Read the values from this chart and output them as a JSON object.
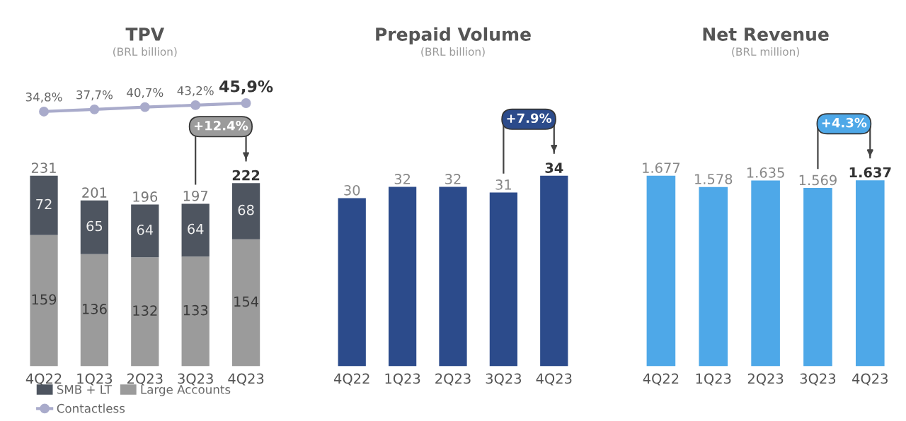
{
  "chart_data": [
    {
      "type": "line",
      "title": "TPV",
      "subtitle": "(BRL billion)",
      "categories": [
        null,
        null,
        null,
        null,
        null
      ],
      "tick_labels": false,
      "legend": "bottom",
      "marker": "circle",
      "series": [
        {
          "name": "Contactless",
          "color": "#a9abcb",
          "values": [
            34.8,
            37.7,
            40.7,
            43.2,
            45.9
          ],
          "value_labels": [
            "34,8%",
            "37,7%",
            "40,7%",
            "43,2%",
            "45,9%"
          ]
        }
      ]
    },
    {
      "type": "bar",
      "categories": [
        "4Q22",
        "1Q23",
        "2Q23",
        "3Q23",
        "4Q23"
      ],
      "stacked": true,
      "tick_labels": "x",
      "legend": "bottom",
      "data_labels": true,
      "series": [
        {
          "name": "Large Accounts",
          "color": "#9b9b9b",
          "values": [
            159,
            136,
            132,
            133,
            154
          ]
        },
        {
          "name": "SMB + LT",
          "color": "#4e5560",
          "values": [
            72,
            65,
            64,
            64,
            68
          ]
        }
      ],
      "totals": [
        "231",
        "201",
        "196",
        "197",
        "222"
      ],
      "annotations": [
        "+12.4%"
      ]
    },
    {
      "type": "bar",
      "title": "Prepaid Volume",
      "subtitle": "(BRL billion)",
      "categories": [
        "4Q22",
        "1Q23",
        "2Q23",
        "3Q23",
        "4Q23"
      ],
      "tick_labels": "x",
      "data_labels": true,
      "series": [
        {
          "color": "#2c4b8b",
          "values": [
            30,
            32,
            32,
            31,
            34
          ]
        }
      ],
      "annotations": [
        "+7.9%"
      ]
    },
    {
      "type": "bar",
      "title": "Net Revenue",
      "subtitle": "(BRL million)",
      "categories": [
        "4Q22",
        "1Q23",
        "2Q23",
        "3Q23",
        "4Q23"
      ],
      "tick_labels": "x",
      "series": [
        {
          "color": "#4ea8e8",
          "values": [
            1677,
            1578,
            1635,
            1569,
            1637
          ],
          "value_labels": [
            "1.677",
            "1.578",
            "1.635",
            "1.569",
            "1.637"
          ]
        }
      ],
      "annotations": [
        "+4.3%"
      ]
    }
  ]
}
